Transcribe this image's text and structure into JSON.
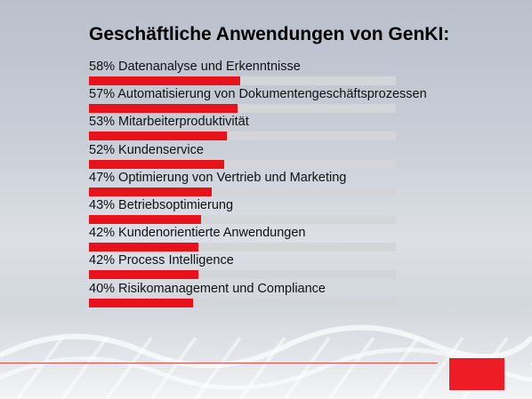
{
  "slide": {
    "title": "Geschäftliche Anwendungen von GenKI:"
  },
  "colors": {
    "bar": "#e8121a",
    "track": "#d4d5d8",
    "accent": "#ee1c24"
  },
  "chart_data": {
    "type": "bar",
    "orientation": "horizontal",
    "title": "Geschäftliche Anwendungen von GenKI:",
    "xlim": [
      0,
      100
    ],
    "items": [
      {
        "label": "58% Datenanalyse und Erkenntnisse",
        "value": 58
      },
      {
        "label": "57% Automatisierung von Dokumentengeschäftsprozessen",
        "value": 57
      },
      {
        "label": "53% Mitarbeiterproduktivität",
        "value": 53
      },
      {
        "label": "52% Kundenservice",
        "value": 52
      },
      {
        "label": "47% Optimierung von Vertrieb und Marketing",
        "value": 47
      },
      {
        "label": "43% Betriebsoptimierung",
        "value": 43
      },
      {
        "label": "42% Kundenorientierte Anwendungen",
        "value": 42
      },
      {
        "label": "42% Process Intelligence",
        "value": 42
      },
      {
        "label": "40% Risikomanagement und Compliance",
        "value": 40
      }
    ]
  }
}
